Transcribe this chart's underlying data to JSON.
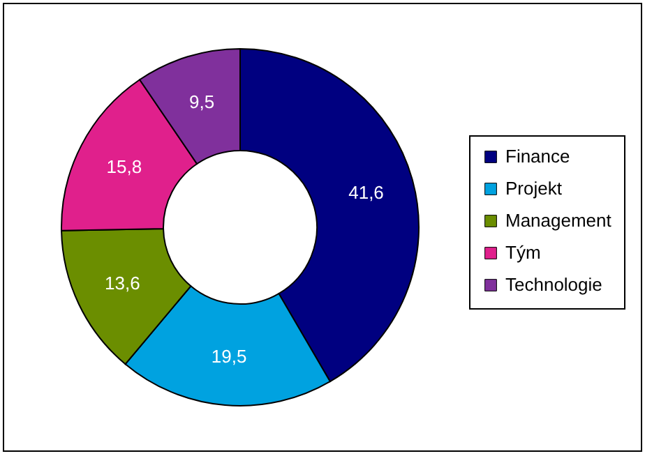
{
  "chart_data": {
    "type": "donut",
    "categories": [
      "Finance",
      "Projekt",
      "Management",
      "Tým",
      "Technologie"
    ],
    "values": [
      41.6,
      19.5,
      13.6,
      15.8,
      9.5
    ],
    "value_labels": [
      "41,6",
      "19,5",
      "13,6",
      "15,8",
      "9,5"
    ],
    "colors": [
      "#000080",
      "#00a2e0",
      "#6b8e00",
      "#e0208c",
      "#80309c"
    ],
    "legend": "right"
  }
}
